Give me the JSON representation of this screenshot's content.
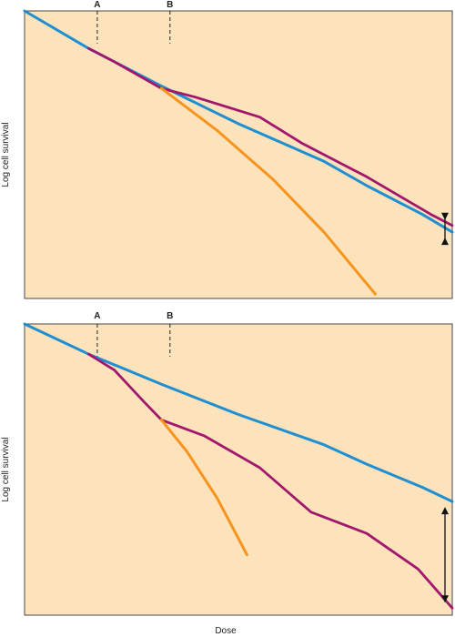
{
  "chart_data": [
    {
      "type": "line",
      "panel": "top",
      "ylabel": "Log cell survival",
      "xlabel": "",
      "markers": [
        "A",
        "B"
      ],
      "colors": {
        "blue": "#1f8fd2",
        "magenta": "#a3166e",
        "orange": "#f7941d",
        "background": "#fde3bb"
      },
      "gap_arrow": true,
      "series": [
        {
          "color": "blue",
          "points": [
            [
              0,
              0
            ],
            [
              0.15,
              -0.85
            ],
            [
              0.32,
              -1.7
            ],
            [
              0.5,
              -2.55
            ],
            [
              0.7,
              -3.4
            ],
            [
              0.8,
              -3.95
            ],
            [
              0.93,
              -4.6
            ],
            [
              1.0,
              -5.0
            ]
          ]
        },
        {
          "color": "magenta",
          "points": [
            [
              0.15,
              -0.85
            ],
            [
              0.21,
              -1.15
            ],
            [
              0.32,
              -1.75
            ],
            [
              0.4,
              -1.95
            ],
            [
              0.55,
              -2.4
            ],
            [
              0.65,
              -3.0
            ],
            [
              0.8,
              -3.75
            ],
            [
              0.95,
              -4.6
            ],
            [
              1.0,
              -4.85
            ]
          ]
        },
        {
          "color": "orange",
          "points": [
            [
              0.32,
              -1.75
            ],
            [
              0.45,
              -2.7
            ],
            [
              0.58,
              -3.8
            ],
            [
              0.7,
              -5.0
            ],
            [
              0.82,
              -6.4
            ]
          ]
        }
      ]
    },
    {
      "type": "line",
      "panel": "bottom",
      "ylabel": "Log cell survival",
      "xlabel": "Dose",
      "markers": [
        "A",
        "B"
      ],
      "colors": {
        "blue": "#1f8fd2",
        "magenta": "#a3166e",
        "orange": "#f7941d",
        "background": "#fde3bb"
      },
      "gap_arrow": true,
      "series": [
        {
          "color": "blue",
          "points": [
            [
              0,
              0
            ],
            [
              0.15,
              -0.85
            ],
            [
              0.32,
              -1.7
            ],
            [
              0.5,
              -2.55
            ],
            [
              0.7,
              -3.4
            ],
            [
              0.8,
              -3.95
            ],
            [
              0.93,
              -4.6
            ],
            [
              1.0,
              -5.0
            ]
          ]
        },
        {
          "color": "magenta",
          "points": [
            [
              0.15,
              -0.85
            ],
            [
              0.21,
              -1.3
            ],
            [
              0.28,
              -2.2
            ],
            [
              0.32,
              -2.7
            ],
            [
              0.42,
              -3.15
            ],
            [
              0.55,
              -4.05
            ],
            [
              0.67,
              -5.3
            ],
            [
              0.8,
              -5.9
            ],
            [
              0.92,
              -6.9
            ],
            [
              1.0,
              -8.0
            ]
          ]
        },
        {
          "color": "orange",
          "points": [
            [
              0.32,
              -2.7
            ],
            [
              0.38,
              -3.6
            ],
            [
              0.45,
              -4.9
            ],
            [
              0.52,
              -6.5
            ]
          ]
        }
      ]
    }
  ]
}
